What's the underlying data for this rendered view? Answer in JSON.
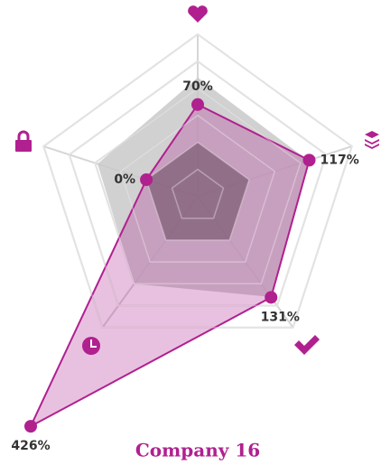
{
  "chart_data": {
    "type": "radar",
    "title": "Company 16",
    "ylim": [
      -100,
      200
    ],
    "yticks": [
      -50,
      0,
      50,
      100,
      150,
      200
    ],
    "series": [
      {
        "color": "#c9c9c9",
        "values": [
          120,
          115,
          130,
          100,
          95
        ]
      },
      {
        "color": "#b0208f",
        "values": [
          70,
          117,
          131,
          426,
          0
        ],
        "value_labels": [
          "70%",
          "117%",
          "131%",
          "426%",
          "0%"
        ]
      }
    ]
  }
}
